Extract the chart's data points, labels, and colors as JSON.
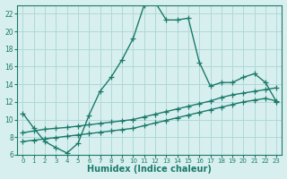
{
  "xlabel": "Humidex (Indice chaleur)",
  "ylabel": "",
  "bg_color": "#d8efef",
  "line_color": "#1a7a6a",
  "grid_color": "#b0d8d8",
  "xlim": [
    -0.5,
    23.5
  ],
  "ylim": [
    6,
    23
  ],
  "xticks": [
    0,
    1,
    2,
    3,
    4,
    5,
    6,
    7,
    8,
    9,
    10,
    11,
    12,
    13,
    14,
    15,
    16,
    17,
    18,
    19,
    20,
    21,
    22,
    23
  ],
  "yticks": [
    6,
    8,
    10,
    12,
    14,
    16,
    18,
    20,
    22
  ],
  "line1_x": [
    0,
    1,
    2,
    3,
    4,
    5,
    6,
    7,
    8,
    9,
    10,
    11,
    12,
    13,
    14,
    15,
    16,
    17,
    18,
    19,
    20,
    21,
    22,
    23
  ],
  "line1_y": [
    10.7,
    9.0,
    7.5,
    6.8,
    6.2,
    7.3,
    10.5,
    13.2,
    14.8,
    16.8,
    19.2,
    23.0,
    23.3,
    21.3,
    21.3,
    21.5,
    16.5,
    13.8,
    14.2,
    14.2,
    14.8,
    15.2,
    14.2,
    12.0
  ],
  "line2_x": [
    0,
    1,
    2,
    3,
    4,
    5,
    6,
    7,
    8,
    9,
    10,
    11,
    12,
    13,
    14,
    15,
    16,
    17,
    18,
    19,
    20,
    21,
    22,
    23
  ],
  "line2_y": [
    8.5,
    8.7,
    8.9,
    9.0,
    9.1,
    9.25,
    9.4,
    9.55,
    9.7,
    9.85,
    10.0,
    10.3,
    10.6,
    10.9,
    11.2,
    11.5,
    11.8,
    12.1,
    12.5,
    12.8,
    13.0,
    13.2,
    13.4,
    13.6
  ],
  "line3_x": [
    0,
    1,
    2,
    3,
    4,
    5,
    6,
    7,
    8,
    9,
    10,
    11,
    12,
    13,
    14,
    15,
    16,
    17,
    18,
    19,
    20,
    21,
    22,
    23
  ],
  "line3_y": [
    7.5,
    7.65,
    7.8,
    7.95,
    8.1,
    8.25,
    8.4,
    8.55,
    8.7,
    8.85,
    9.0,
    9.3,
    9.6,
    9.9,
    10.2,
    10.5,
    10.8,
    11.1,
    11.4,
    11.7,
    12.0,
    12.2,
    12.4,
    12.1
  ]
}
